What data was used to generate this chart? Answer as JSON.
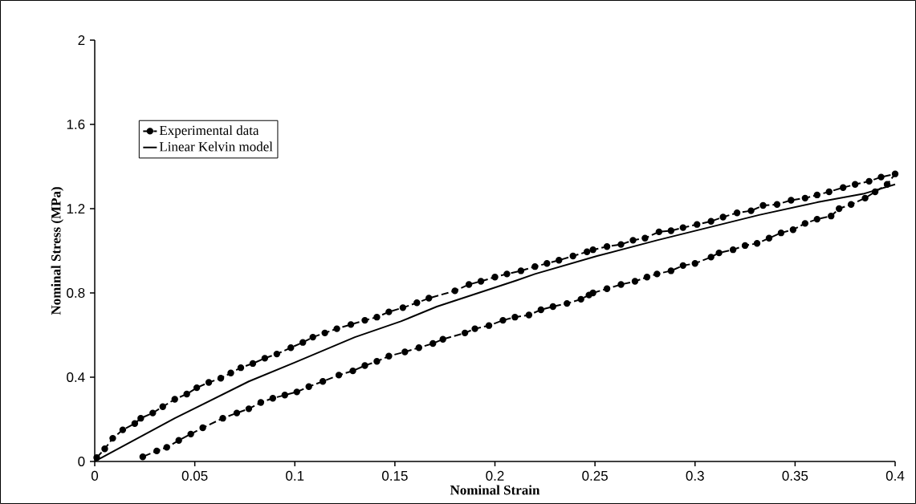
{
  "chart_data": {
    "type": "line",
    "xlabel": "Nominal Strain",
    "ylabel": "Nominal Stress (MPa)",
    "xlim": [
      0,
      0.4
    ],
    "ylim": [
      0,
      2
    ],
    "xticks": [
      0,
      0.05,
      0.1,
      0.15,
      0.2,
      0.25,
      0.3,
      0.35,
      0.4
    ],
    "yticks": [
      0,
      0.4,
      0.8,
      1.2,
      1.6,
      2
    ],
    "grid": false,
    "legend": "top left",
    "series": [
      {
        "name": "Experimental data",
        "color": "#000000",
        "marker": "circle",
        "line_style": "dashed",
        "x": [
          0.001,
          0.005,
          0.009,
          0.014,
          0.02,
          0.023,
          0.029,
          0.034,
          0.04,
          0.046,
          0.051,
          0.057,
          0.063,
          0.068,
          0.073,
          0.079,
          0.085,
          0.091,
          0.098,
          0.104,
          0.109,
          0.115,
          0.121,
          0.128,
          0.135,
          0.141,
          0.147,
          0.154,
          0.161,
          0.167,
          0.18,
          0.187,
          0.193,
          0.2,
          0.206,
          0.213,
          0.22,
          0.226,
          0.232,
          0.239,
          0.246,
          0.249,
          0.256,
          0.263,
          0.269,
          0.275,
          0.282,
          0.288,
          0.294,
          0.301,
          0.308,
          0.314,
          0.321,
          0.328,
          0.334,
          0.341,
          0.348,
          0.355,
          0.361,
          0.367,
          0.374,
          0.38,
          0.387,
          0.393,
          0.4,
          0.396,
          0.39,
          0.385,
          0.378,
          0.372,
          0.368,
          0.361,
          0.355,
          0.349,
          0.343,
          0.337,
          0.331,
          0.325,
          0.319,
          0.312,
          0.308,
          0.3,
          0.294,
          0.288,
          0.281,
          0.276,
          0.27,
          0.263,
          0.256,
          0.249,
          0.247,
          0.243,
          0.236,
          0.229,
          0.223,
          0.217,
          0.21,
          0.204,
          0.197,
          0.19,
          0.185,
          0.174,
          0.169,
          0.162,
          0.155,
          0.147,
          0.141,
          0.135,
          0.129,
          0.122,
          0.114,
          0.107,
          0.101,
          0.095,
          0.089,
          0.083,
          0.077,
          0.071,
          0.064,
          0.054,
          0.048,
          0.042,
          0.036,
          0.031,
          0.024
        ],
        "values": [
          0.018,
          0.06,
          0.11,
          0.15,
          0.18,
          0.205,
          0.23,
          0.26,
          0.295,
          0.32,
          0.35,
          0.375,
          0.395,
          0.42,
          0.445,
          0.465,
          0.49,
          0.51,
          0.54,
          0.565,
          0.59,
          0.61,
          0.63,
          0.65,
          0.67,
          0.685,
          0.71,
          0.73,
          0.753,
          0.775,
          0.81,
          0.84,
          0.855,
          0.875,
          0.89,
          0.905,
          0.925,
          0.94,
          0.955,
          0.975,
          0.995,
          1.005,
          1.02,
          1.03,
          1.05,
          1.06,
          1.09,
          1.095,
          1.11,
          1.125,
          1.14,
          1.16,
          1.18,
          1.19,
          1.215,
          1.22,
          1.24,
          1.25,
          1.265,
          1.28,
          1.3,
          1.315,
          1.33,
          1.35,
          1.365,
          1.315,
          1.28,
          1.25,
          1.22,
          1.2,
          1.165,
          1.15,
          1.13,
          1.1,
          1.085,
          1.06,
          1.035,
          1.025,
          1.005,
          0.99,
          0.97,
          0.94,
          0.93,
          0.905,
          0.89,
          0.875,
          0.855,
          0.84,
          0.82,
          0.8,
          0.79,
          0.77,
          0.75,
          0.735,
          0.72,
          0.695,
          0.685,
          0.67,
          0.645,
          0.63,
          0.61,
          0.58,
          0.56,
          0.54,
          0.52,
          0.5,
          0.475,
          0.455,
          0.43,
          0.41,
          0.38,
          0.355,
          0.33,
          0.315,
          0.3,
          0.28,
          0.25,
          0.23,
          0.205,
          0.16,
          0.13,
          0.1,
          0.067,
          0.05,
          0.022
        ]
      },
      {
        "name": "Linear Kelvin model",
        "color": "#000000",
        "marker": "none",
        "line_style": "solid",
        "x": [
          0,
          0.04,
          0.077,
          0.1,
          0.13,
          0.153,
          0.171,
          0.211,
          0.22,
          0.251,
          0.281,
          0.332,
          0.361,
          0.384,
          0.4
        ],
        "values": [
          0,
          0.205,
          0.38,
          0.47,
          0.59,
          0.665,
          0.735,
          0.86,
          0.89,
          0.975,
          1.05,
          1.17,
          1.23,
          1.27,
          1.315
        ]
      }
    ]
  }
}
